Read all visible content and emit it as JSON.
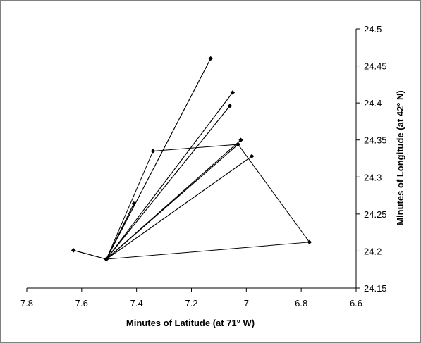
{
  "chart_data": {
    "type": "scatter",
    "connected": true,
    "xlabel": "Minutes of Latitude (at 71° W)",
    "ylabel": "Minutes of Longitude (at 42° N)",
    "xlim": [
      7.8,
      6.6
    ],
    "x_reversed": true,
    "ylim": [
      24.15,
      24.5
    ],
    "x_ticks": [
      "7.8",
      "7.6",
      "7.4",
      "7.2",
      "7",
      "6.8",
      "6.6"
    ],
    "y_ticks": [
      "24.15",
      "24.2",
      "24.25",
      "24.3",
      "24.35",
      "24.4",
      "24.45",
      "24.5"
    ],
    "y_axis_position": "right",
    "grid": false,
    "legend": "none",
    "colors": {
      "line": "#000000",
      "marker": "#000000",
      "frame": "#808080"
    },
    "series": [
      {
        "marker": "diamond",
        "x": [
          7.51,
          7.13,
          7.51,
          7.06,
          7.51,
          7.05,
          7.51,
          7.02,
          7.51,
          7.63,
          7.51,
          7.41,
          7.51,
          7.03,
          7.51,
          6.98,
          7.51,
          7.34,
          7.03,
          6.77,
          7.51
        ],
        "y": [
          24.189,
          24.46,
          24.189,
          24.396,
          24.189,
          24.414,
          24.189,
          24.35,
          24.189,
          24.201,
          24.189,
          24.264,
          24.189,
          24.344,
          24.189,
          24.328,
          24.189,
          24.335,
          24.344,
          24.212,
          24.189
        ]
      }
    ]
  }
}
